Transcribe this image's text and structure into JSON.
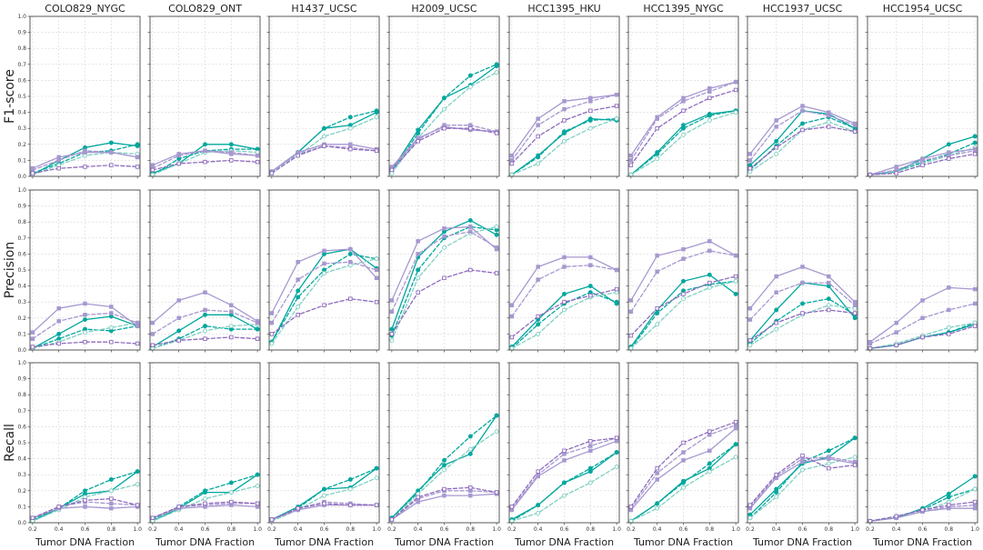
{
  "chart_data": {
    "type": "line",
    "columns": [
      "COLO829_NYGC",
      "COLO829_ONT",
      "H1437_UCSC",
      "H2009_UCSC",
      "HCC1395_HKU",
      "HCC1395_NYGC",
      "HCC1937_UCSC",
      "HCC1954_UCSC"
    ],
    "rows": [
      "F1-score",
      "Precision",
      "Recall"
    ],
    "xlabel": "Tumor DNA Fraction",
    "x": [
      0.2,
      0.4,
      0.6,
      0.8,
      1.0
    ],
    "xticks": [
      "0.2",
      "0.4",
      "0.6",
      "0.8",
      "1.0"
    ],
    "ylim": [
      0,
      1
    ],
    "yticks": [
      "0.0",
      "0.1",
      "0.2",
      "0.3",
      "0.4",
      "0.5",
      "0.6",
      "0.7",
      "0.8",
      "0.9",
      "1.0"
    ],
    "grid": true,
    "series_styles": [
      {
        "color": "#00a79d",
        "dash": "solid",
        "marker": "circle-filled"
      },
      {
        "color": "#00a79d",
        "dash": "dashed",
        "marker": "circle-filled"
      },
      {
        "color": "#7fcfc3",
        "dash": "dashed",
        "marker": "circle-open"
      },
      {
        "color": "#a798d0",
        "dash": "solid",
        "marker": "square-filled"
      },
      {
        "color": "#a798d0",
        "dash": "dashed",
        "marker": "square-filled"
      },
      {
        "color": "#8e6bbd",
        "dash": "dashed",
        "marker": "square-open"
      }
    ],
    "panels": [
      [
        [
          [
            0.01,
            0.1,
            0.18,
            0.21,
            0.19
          ],
          [
            0.02,
            0.08,
            0.15,
            0.16,
            0.2
          ],
          [
            0.01,
            0.07,
            0.13,
            0.15,
            0.14
          ],
          [
            0.05,
            0.12,
            0.15,
            0.15,
            0.12
          ],
          [
            0.04,
            0.1,
            0.16,
            0.15,
            0.12
          ],
          [
            0.02,
            0.05,
            0.06,
            0.07,
            0.06
          ]
        ],
        [
          [
            0.02,
            0.08,
            0.2,
            0.2,
            0.17
          ],
          [
            0.01,
            0.11,
            0.16,
            0.17,
            0.17
          ],
          [
            0.01,
            0.08,
            0.15,
            0.16,
            0.15
          ],
          [
            0.07,
            0.14,
            0.16,
            0.14,
            0.13
          ],
          [
            0.05,
            0.13,
            0.16,
            0.15,
            0.13
          ],
          [
            0.04,
            0.08,
            0.09,
            0.1,
            0.09
          ]
        ],
        [
          [
            0.03,
            0.15,
            0.3,
            0.32,
            0.4
          ],
          [
            0.03,
            0.15,
            0.3,
            0.37,
            0.41
          ],
          [
            0.02,
            0.13,
            0.25,
            0.3,
            0.37
          ],
          [
            0.03,
            0.15,
            0.2,
            0.2,
            0.17
          ],
          [
            0.03,
            0.14,
            0.19,
            0.18,
            0.16
          ],
          [
            0.02,
            0.13,
            0.19,
            0.17,
            0.16
          ]
        ],
        [
          [
            0.04,
            0.29,
            0.49,
            0.57,
            0.69
          ],
          [
            0.03,
            0.27,
            0.49,
            0.63,
            0.7
          ],
          [
            0.02,
            0.24,
            0.42,
            0.56,
            0.65
          ],
          [
            0.06,
            0.24,
            0.31,
            0.29,
            0.28
          ],
          [
            0.05,
            0.23,
            0.32,
            0.32,
            0.28
          ],
          [
            0.04,
            0.22,
            0.3,
            0.3,
            0.27
          ]
        ],
        [
          [
            0.01,
            0.13,
            0.27,
            0.36,
            0.35
          ],
          [
            0.01,
            0.12,
            0.28,
            0.35,
            0.36
          ],
          [
            0.01,
            0.08,
            0.22,
            0.3,
            0.36
          ],
          [
            0.13,
            0.36,
            0.47,
            0.49,
            0.51
          ],
          [
            0.1,
            0.32,
            0.42,
            0.47,
            0.51
          ],
          [
            0.08,
            0.25,
            0.35,
            0.41,
            0.44
          ]
        ],
        [
          [
            0.01,
            0.15,
            0.32,
            0.39,
            0.41
          ],
          [
            0.01,
            0.14,
            0.3,
            0.38,
            0.41
          ],
          [
            0.01,
            0.11,
            0.26,
            0.35,
            0.4
          ],
          [
            0.13,
            0.37,
            0.49,
            0.55,
            0.59
          ],
          [
            0.1,
            0.36,
            0.47,
            0.53,
            0.59
          ],
          [
            0.07,
            0.3,
            0.41,
            0.49,
            0.54
          ]
        ],
        [
          [
            0.07,
            0.22,
            0.41,
            0.39,
            0.3
          ],
          [
            0.04,
            0.19,
            0.33,
            0.37,
            0.3
          ],
          [
            0.03,
            0.14,
            0.29,
            0.34,
            0.28
          ],
          [
            0.14,
            0.35,
            0.44,
            0.4,
            0.33
          ],
          [
            0.1,
            0.31,
            0.41,
            0.38,
            0.32
          ],
          [
            0.05,
            0.18,
            0.29,
            0.31,
            0.28
          ]
        ],
        [
          [
            0.01,
            0.03,
            0.11,
            0.2,
            0.25
          ],
          [
            0.01,
            0.03,
            0.09,
            0.14,
            0.21
          ],
          [
            0.01,
            0.03,
            0.08,
            0.13,
            0.18
          ],
          [
            0.01,
            0.06,
            0.11,
            0.15,
            0.17
          ],
          [
            0.01,
            0.04,
            0.1,
            0.13,
            0.16
          ],
          [
            0.01,
            0.02,
            0.07,
            0.11,
            0.14
          ]
        ]
      ],
      [
        [
          [
            0.01,
            0.1,
            0.19,
            0.21,
            0.15
          ],
          [
            0.01,
            0.07,
            0.13,
            0.12,
            0.15
          ],
          [
            0.01,
            0.05,
            0.11,
            0.14,
            0.17
          ],
          [
            0.11,
            0.26,
            0.29,
            0.27,
            0.15
          ],
          [
            0.07,
            0.18,
            0.22,
            0.23,
            0.17
          ],
          [
            0.02,
            0.04,
            0.05,
            0.05,
            0.04
          ]
        ],
        [
          [
            0.02,
            0.12,
            0.22,
            0.22,
            0.13
          ],
          [
            0.01,
            0.07,
            0.15,
            0.13,
            0.13
          ],
          [
            0.01,
            0.06,
            0.12,
            0.15,
            0.16
          ],
          [
            0.17,
            0.31,
            0.36,
            0.28,
            0.18
          ],
          [
            0.1,
            0.2,
            0.25,
            0.24,
            0.17
          ],
          [
            0.03,
            0.06,
            0.07,
            0.08,
            0.07
          ]
        ],
        [
          [
            0.05,
            0.37,
            0.6,
            0.63,
            0.51
          ],
          [
            0.05,
            0.33,
            0.5,
            0.6,
            0.57
          ],
          [
            0.04,
            0.27,
            0.48,
            0.53,
            0.57
          ],
          [
            0.23,
            0.55,
            0.62,
            0.63,
            0.45
          ],
          [
            0.17,
            0.44,
            0.54,
            0.55,
            0.5
          ],
          [
            0.1,
            0.22,
            0.28,
            0.32,
            0.3
          ]
        ],
        [
          [
            0.13,
            0.58,
            0.74,
            0.81,
            0.72
          ],
          [
            0.09,
            0.5,
            0.7,
            0.77,
            0.75
          ],
          [
            0.06,
            0.45,
            0.64,
            0.73,
            0.77
          ],
          [
            0.31,
            0.68,
            0.76,
            0.77,
            0.63
          ],
          [
            0.24,
            0.6,
            0.71,
            0.74,
            0.64
          ],
          [
            0.1,
            0.36,
            0.45,
            0.5,
            0.48
          ]
        ],
        [
          [
            0.02,
            0.19,
            0.35,
            0.4,
            0.29
          ],
          [
            0.01,
            0.16,
            0.29,
            0.36,
            0.3
          ],
          [
            0.01,
            0.1,
            0.25,
            0.33,
            0.36
          ],
          [
            0.28,
            0.52,
            0.58,
            0.58,
            0.5
          ],
          [
            0.21,
            0.44,
            0.52,
            0.53,
            0.5
          ],
          [
            0.08,
            0.21,
            0.3,
            0.34,
            0.38
          ]
        ],
        [
          [
            0.02,
            0.25,
            0.43,
            0.47,
            0.35
          ],
          [
            0.01,
            0.23,
            0.37,
            0.41,
            0.43
          ],
          [
            0.01,
            0.16,
            0.32,
            0.39,
            0.43
          ],
          [
            0.31,
            0.59,
            0.63,
            0.68,
            0.59
          ],
          [
            0.24,
            0.49,
            0.57,
            0.62,
            0.59
          ],
          [
            0.09,
            0.26,
            0.35,
            0.42,
            0.46
          ]
        ],
        [
          [
            0.06,
            0.25,
            0.42,
            0.4,
            0.2
          ],
          [
            0.04,
            0.18,
            0.29,
            0.32,
            0.22
          ],
          [
            0.03,
            0.13,
            0.22,
            0.28,
            0.26
          ],
          [
            0.26,
            0.46,
            0.52,
            0.46,
            0.3
          ],
          [
            0.19,
            0.36,
            0.42,
            0.42,
            0.28
          ],
          [
            0.06,
            0.17,
            0.23,
            0.25,
            0.23
          ]
        ],
        [
          [
            0.01,
            0.03,
            0.08,
            0.11,
            0.16
          ],
          [
            0.01,
            0.03,
            0.08,
            0.11,
            0.17
          ],
          [
            0.01,
            0.04,
            0.09,
            0.14,
            0.17
          ],
          [
            0.05,
            0.17,
            0.31,
            0.39,
            0.38
          ],
          [
            0.04,
            0.11,
            0.2,
            0.25,
            0.29
          ],
          [
            0.01,
            0.03,
            0.08,
            0.1,
            0.15
          ]
        ]
      ],
      [
        [
          [
            0.01,
            0.09,
            0.18,
            0.2,
            0.32
          ],
          [
            0.02,
            0.09,
            0.2,
            0.27,
            0.32
          ],
          [
            0.01,
            0.08,
            0.16,
            0.2,
            0.24
          ],
          [
            0.03,
            0.09,
            0.1,
            0.09,
            0.1
          ],
          [
            0.03,
            0.1,
            0.13,
            0.12,
            0.11
          ],
          [
            0.03,
            0.1,
            0.14,
            0.15,
            0.11
          ]
        ],
        [
          [
            0.01,
            0.09,
            0.19,
            0.19,
            0.3
          ],
          [
            0.02,
            0.1,
            0.2,
            0.25,
            0.3
          ],
          [
            0.01,
            0.08,
            0.15,
            0.19,
            0.23
          ],
          [
            0.03,
            0.09,
            0.1,
            0.11,
            0.1
          ],
          [
            0.03,
            0.1,
            0.11,
            0.12,
            0.12
          ],
          [
            0.03,
            0.1,
            0.12,
            0.13,
            0.12
          ]
        ],
        [
          [
            0.02,
            0.1,
            0.21,
            0.22,
            0.34
          ],
          [
            0.02,
            0.09,
            0.21,
            0.27,
            0.34
          ],
          [
            0.01,
            0.08,
            0.17,
            0.21,
            0.28
          ],
          [
            0.02,
            0.08,
            0.11,
            0.11,
            0.11
          ],
          [
            0.02,
            0.09,
            0.13,
            0.12,
            0.11
          ],
          [
            0.02,
            0.09,
            0.12,
            0.11,
            0.11
          ]
        ],
        [
          [
            0.03,
            0.2,
            0.36,
            0.43,
            0.67
          ],
          [
            0.03,
            0.19,
            0.39,
            0.54,
            0.67
          ],
          [
            0.02,
            0.18,
            0.33,
            0.46,
            0.57
          ],
          [
            0.02,
            0.13,
            0.17,
            0.17,
            0.18
          ],
          [
            0.02,
            0.15,
            0.2,
            0.2,
            0.19
          ],
          [
            0.02,
            0.16,
            0.21,
            0.22,
            0.19
          ]
        ],
        [
          [
            0.02,
            0.11,
            0.25,
            0.32,
            0.44
          ],
          [
            0.01,
            0.11,
            0.25,
            0.34,
            0.44
          ],
          [
            0.01,
            0.06,
            0.17,
            0.25,
            0.35
          ],
          [
            0.08,
            0.29,
            0.39,
            0.45,
            0.51
          ],
          [
            0.09,
            0.3,
            0.43,
            0.48,
            0.53
          ],
          [
            0.1,
            0.32,
            0.45,
            0.51,
            0.53
          ]
        ],
        [
          [
            0.01,
            0.12,
            0.26,
            0.34,
            0.49
          ],
          [
            0.01,
            0.12,
            0.25,
            0.37,
            0.49
          ],
          [
            0.01,
            0.09,
            0.22,
            0.32,
            0.41
          ],
          [
            0.08,
            0.27,
            0.39,
            0.45,
            0.59
          ],
          [
            0.09,
            0.31,
            0.44,
            0.55,
            0.61
          ],
          [
            0.1,
            0.34,
            0.5,
            0.57,
            0.63
          ]
        ],
        [
          [
            0.05,
            0.21,
            0.37,
            0.41,
            0.53
          ],
          [
            0.03,
            0.19,
            0.38,
            0.45,
            0.53
          ],
          [
            0.03,
            0.16,
            0.33,
            0.37,
            0.41
          ],
          [
            0.09,
            0.28,
            0.38,
            0.4,
            0.37
          ],
          [
            0.1,
            0.29,
            0.4,
            0.41,
            0.38
          ],
          [
            0.11,
            0.3,
            0.42,
            0.34,
            0.36
          ]
        ],
        [
          [
            0.01,
            0.03,
            0.09,
            0.18,
            0.29
          ],
          [
            0.01,
            0.04,
            0.08,
            0.16,
            0.21
          ],
          [
            0.01,
            0.03,
            0.07,
            0.13,
            0.21
          ],
          [
            0.01,
            0.03,
            0.07,
            0.09,
            0.09
          ],
          [
            0.01,
            0.03,
            0.07,
            0.1,
            0.11
          ],
          [
            0.01,
            0.04,
            0.08,
            0.11,
            0.13
          ]
        ]
      ]
    ]
  }
}
